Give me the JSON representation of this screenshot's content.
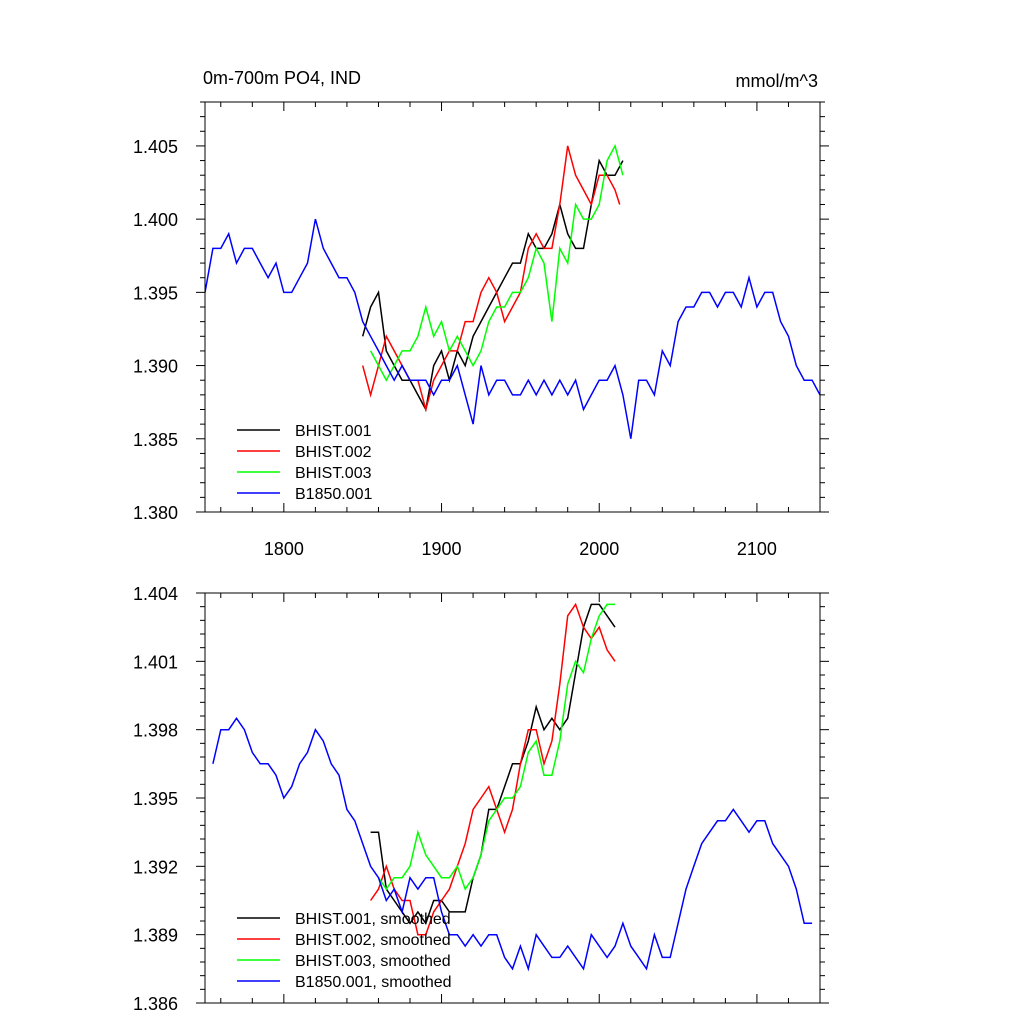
{
  "figure": {
    "title_left": "0m-700m PO4, IND",
    "title_right": "mmol/m^3"
  },
  "chart_data": [
    {
      "type": "line",
      "xlim": [
        1750,
        2140
      ],
      "ylim": [
        1.38,
        1.408
      ],
      "x_ticks": [
        1800,
        1900,
        2000,
        2100
      ],
      "x_tick_labels": [
        "1800",
        "1900",
        "2000",
        "2100"
      ],
      "y_ticks": [
        1.38,
        1.385,
        1.39,
        1.395,
        1.4,
        1.405
      ],
      "y_tick_labels": [
        "1.380",
        "1.385",
        "1.390",
        "1.395",
        "1.400",
        "1.405"
      ],
      "legend_position": "lower-left",
      "series": [
        {
          "name": "BHIST.001",
          "color": "#000000",
          "x": [
            1850,
            1855,
            1860,
            1865,
            1870,
            1875,
            1880,
            1885,
            1890,
            1895,
            1900,
            1905,
            1910,
            1915,
            1920,
            1925,
            1930,
            1935,
            1940,
            1945,
            1950,
            1955,
            1960,
            1965,
            1970,
            1975,
            1980,
            1985,
            1990,
            1995,
            2000,
            2005,
            2010,
            2015
          ],
          "y": [
            1.392,
            1.394,
            1.395,
            1.391,
            1.39,
            1.389,
            1.389,
            1.388,
            1.387,
            1.39,
            1.391,
            1.389,
            1.391,
            1.39,
            1.392,
            1.393,
            1.394,
            1.395,
            1.396,
            1.397,
            1.397,
            1.399,
            1.398,
            1.398,
            1.399,
            1.401,
            1.399,
            1.398,
            1.398,
            1.401,
            1.404,
            1.403,
            1.403,
            1.404
          ]
        },
        {
          "name": "BHIST.002",
          "color": "#ff0000",
          "x": [
            1850,
            1855,
            1860,
            1865,
            1870,
            1875,
            1880,
            1885,
            1890,
            1895,
            1900,
            1905,
            1910,
            1915,
            1920,
            1925,
            1930,
            1935,
            1940,
            1945,
            1950,
            1955,
            1960,
            1965,
            1970,
            1975,
            1980,
            1985,
            1990,
            1995,
            2000,
            2005,
            2010,
            2013
          ],
          "y": [
            1.39,
            1.388,
            1.39,
            1.392,
            1.391,
            1.39,
            1.389,
            1.389,
            1.387,
            1.389,
            1.39,
            1.391,
            1.391,
            1.393,
            1.393,
            1.395,
            1.396,
            1.395,
            1.393,
            1.394,
            1.395,
            1.398,
            1.399,
            1.398,
            1.398,
            1.401,
            1.405,
            1.403,
            1.402,
            1.401,
            1.403,
            1.403,
            1.402,
            1.401
          ]
        },
        {
          "name": "BHIST.003",
          "color": "#00ff00",
          "x": [
            1855,
            1860,
            1865,
            1870,
            1875,
            1880,
            1885,
            1890,
            1895,
            1900,
            1905,
            1910,
            1915,
            1920,
            1925,
            1930,
            1935,
            1940,
            1945,
            1950,
            1955,
            1960,
            1965,
            1970,
            1975,
            1980,
            1985,
            1990,
            1995,
            2000,
            2005,
            2010,
            2015
          ],
          "y": [
            1.391,
            1.39,
            1.389,
            1.39,
            1.391,
            1.391,
            1.392,
            1.394,
            1.392,
            1.393,
            1.391,
            1.392,
            1.391,
            1.39,
            1.391,
            1.393,
            1.394,
            1.394,
            1.395,
            1.395,
            1.396,
            1.398,
            1.397,
            1.393,
            1.398,
            1.397,
            1.401,
            1.4,
            1.4,
            1.401,
            1.404,
            1.405,
            1.403
          ]
        },
        {
          "name": "B1850.001",
          "color": "#0000ff",
          "x": [
            1750,
            1755,
            1760,
            1765,
            1770,
            1775,
            1780,
            1785,
            1790,
            1795,
            1800,
            1805,
            1810,
            1815,
            1820,
            1825,
            1830,
            1835,
            1840,
            1845,
            1850,
            1855,
            1860,
            1865,
            1870,
            1875,
            1880,
            1885,
            1890,
            1895,
            1900,
            1905,
            1910,
            1915,
            1920,
            1925,
            1930,
            1935,
            1940,
            1945,
            1950,
            1955,
            1960,
            1965,
            1970,
            1975,
            1980,
            1985,
            1990,
            1995,
            2000,
            2005,
            2010,
            2015,
            2020,
            2025,
            2030,
            2035,
            2040,
            2045,
            2050,
            2055,
            2060,
            2065,
            2070,
            2075,
            2080,
            2085,
            2090,
            2095,
            2100,
            2105,
            2110,
            2115,
            2120,
            2125,
            2130,
            2135,
            2140
          ],
          "y": [
            1.395,
            1.398,
            1.398,
            1.399,
            1.397,
            1.398,
            1.398,
            1.397,
            1.396,
            1.397,
            1.395,
            1.395,
            1.396,
            1.397,
            1.4,
            1.398,
            1.397,
            1.396,
            1.396,
            1.395,
            1.393,
            1.392,
            1.391,
            1.39,
            1.389,
            1.39,
            1.389,
            1.389,
            1.389,
            1.388,
            1.389,
            1.389,
            1.39,
            1.388,
            1.386,
            1.39,
            1.388,
            1.389,
            1.389,
            1.388,
            1.388,
            1.389,
            1.388,
            1.389,
            1.388,
            1.389,
            1.388,
            1.389,
            1.387,
            1.388,
            1.389,
            1.389,
            1.39,
            1.388,
            1.385,
            1.389,
            1.389,
            1.388,
            1.391,
            1.39,
            1.393,
            1.394,
            1.394,
            1.395,
            1.395,
            1.394,
            1.395,
            1.395,
            1.394,
            1.396,
            1.394,
            1.395,
            1.395,
            1.393,
            1.392,
            1.39,
            1.389,
            1.389,
            1.388
          ]
        }
      ]
    },
    {
      "type": "line",
      "xlim": [
        1750,
        2140
      ],
      "ylim": [
        1.386,
        1.404
      ],
      "x_ticks": [
        1800,
        1900,
        2000,
        2100
      ],
      "x_tick_labels": [],
      "y_ticks": [
        1.386,
        1.389,
        1.392,
        1.395,
        1.398,
        1.401,
        1.404
      ],
      "y_tick_labels": [
        "1.386",
        "1.389",
        "1.392",
        "1.395",
        "1.398",
        "1.401",
        "1.404"
      ],
      "legend_position": "lower-left",
      "series": [
        {
          "name": "BHIST.001, smoothed",
          "color": "#000000",
          "x": [
            1855,
            1860,
            1865,
            1870,
            1875,
            1880,
            1885,
            1890,
            1895,
            1900,
            1905,
            1910,
            1915,
            1920,
            1925,
            1930,
            1935,
            1940,
            1945,
            1950,
            1955,
            1960,
            1965,
            1970,
            1975,
            1980,
            1985,
            1990,
            1995,
            2000,
            2005,
            2010
          ],
          "y": [
            1.3935,
            1.3935,
            1.391,
            1.3905,
            1.39,
            1.3895,
            1.39,
            1.3895,
            1.3905,
            1.3905,
            1.39,
            1.39,
            1.39,
            1.3915,
            1.3925,
            1.3945,
            1.3945,
            1.3955,
            1.3965,
            1.3965,
            1.3975,
            1.399,
            1.398,
            1.3985,
            1.398,
            1.3985,
            1.4005,
            1.4025,
            1.4035,
            1.4035,
            1.403,
            1.4025
          ]
        },
        {
          "name": "BHIST.002, smoothed",
          "color": "#ff0000",
          "x": [
            1855,
            1860,
            1865,
            1870,
            1875,
            1880,
            1885,
            1890,
            1895,
            1900,
            1905,
            1910,
            1915,
            1920,
            1925,
            1930,
            1935,
            1940,
            1945,
            1950,
            1955,
            1960,
            1965,
            1970,
            1975,
            1980,
            1985,
            1990,
            1995,
            2000,
            2005,
            2010
          ],
          "y": [
            1.3905,
            1.391,
            1.392,
            1.391,
            1.3905,
            1.3905,
            1.389,
            1.389,
            1.39,
            1.3905,
            1.391,
            1.392,
            1.393,
            1.3945,
            1.395,
            1.3955,
            1.3945,
            1.3935,
            1.3945,
            1.3965,
            1.398,
            1.398,
            1.3965,
            1.3975,
            1.4,
            1.403,
            1.4035,
            1.4025,
            1.402,
            1.4025,
            1.4015,
            1.401
          ]
        },
        {
          "name": "BHIST.003, smoothed",
          "color": "#00ff00",
          "x": [
            1860,
            1865,
            1870,
            1875,
            1880,
            1885,
            1890,
            1895,
            1900,
            1905,
            1910,
            1915,
            1920,
            1925,
            1930,
            1935,
            1940,
            1945,
            1950,
            1955,
            1960,
            1965,
            1970,
            1975,
            1980,
            1985,
            1990,
            1995,
            2000,
            2005,
            2010
          ],
          "y": [
            1.3915,
            1.391,
            1.3915,
            1.3915,
            1.392,
            1.3935,
            1.3925,
            1.392,
            1.3915,
            1.3915,
            1.392,
            1.391,
            1.3915,
            1.3925,
            1.394,
            1.3945,
            1.395,
            1.395,
            1.3955,
            1.397,
            1.3975,
            1.396,
            1.396,
            1.3975,
            1.4,
            1.401,
            1.4005,
            1.402,
            1.403,
            1.4035,
            1.4035
          ]
        },
        {
          "name": "B1850.001, smoothed",
          "color": "#0000ff",
          "x": [
            1755,
            1760,
            1765,
            1770,
            1775,
            1780,
            1785,
            1790,
            1795,
            1800,
            1805,
            1810,
            1815,
            1820,
            1825,
            1830,
            1835,
            1840,
            1845,
            1850,
            1855,
            1860,
            1865,
            1870,
            1875,
            1880,
            1885,
            1890,
            1895,
            1900,
            1905,
            1910,
            1915,
            1920,
            1925,
            1930,
            1935,
            1940,
            1945,
            1950,
            1955,
            1960,
            1965,
            1970,
            1975,
            1980,
            1985,
            1990,
            1995,
            2000,
            2005,
            2010,
            2015,
            2020,
            2025,
            2030,
            2035,
            2040,
            2045,
            2050,
            2055,
            2060,
            2065,
            2070,
            2075,
            2080,
            2085,
            2090,
            2095,
            2100,
            2105,
            2110,
            2115,
            2120,
            2125,
            2130,
            2135
          ],
          "y": [
            1.3965,
            1.398,
            1.398,
            1.3985,
            1.398,
            1.397,
            1.3965,
            1.3965,
            1.396,
            1.395,
            1.3955,
            1.3965,
            1.397,
            1.398,
            1.3975,
            1.3965,
            1.396,
            1.3945,
            1.394,
            1.393,
            1.392,
            1.3915,
            1.3905,
            1.391,
            1.39,
            1.3915,
            1.391,
            1.3915,
            1.3915,
            1.39,
            1.389,
            1.389,
            1.3885,
            1.389,
            1.3885,
            1.389,
            1.389,
            1.388,
            1.3875,
            1.3885,
            1.3875,
            1.389,
            1.3885,
            1.388,
            1.388,
            1.3885,
            1.388,
            1.3875,
            1.389,
            1.3885,
            1.388,
            1.3885,
            1.3895,
            1.3885,
            1.388,
            1.3875,
            1.389,
            1.388,
            1.388,
            1.3895,
            1.391,
            1.392,
            1.393,
            1.3935,
            1.394,
            1.394,
            1.3945,
            1.394,
            1.3935,
            1.394,
            1.394,
            1.393,
            1.3925,
            1.392,
            1.391,
            1.3895,
            1.3895
          ]
        }
      ]
    }
  ]
}
